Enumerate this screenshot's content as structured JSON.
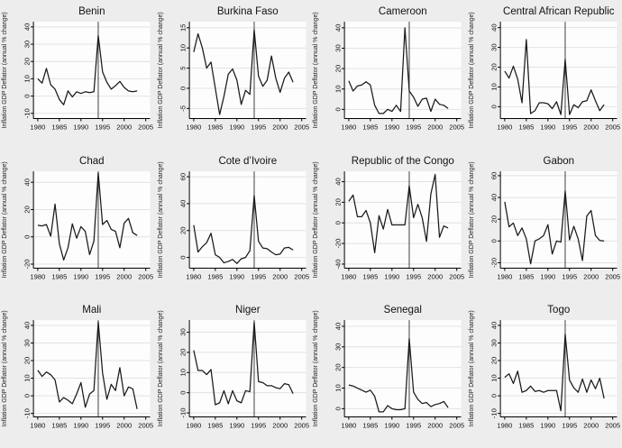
{
  "figure": {
    "y_axis_label": "Inflation GDP Deflator (annual % change)",
    "x_ticks": [
      1980,
      1985,
      1990,
      1995,
      2000,
      2005
    ],
    "xlim": [
      1979,
      2006
    ],
    "reference_line_year": 1994,
    "colors": {
      "background": "#ededed",
      "plot_bg": "#fdfdfd",
      "gridline": "#e2e2e2",
      "axis": "#000000",
      "line": "#1a1a1a",
      "refline": "#404040"
    }
  },
  "chart_data": [
    {
      "type": "line",
      "title": "Benin",
      "xlabel": "",
      "ylabel": "Inflation GDP Deflator (annual % change)",
      "x": [
        1980,
        1981,
        1982,
        1983,
        1984,
        1985,
        1986,
        1987,
        1988,
        1989,
        1990,
        1991,
        1992,
        1993,
        1994,
        1995,
        1996,
        1997,
        1998,
        1999,
        2000,
        2001,
        2002,
        2003
      ],
      "y": [
        10,
        7.5,
        16,
        6.5,
        4,
        -2,
        -5,
        3,
        -0.5,
        2.5,
        1.5,
        2.5,
        2,
        2.5,
        35,
        14,
        8,
        4,
        6,
        8.5,
        5,
        3,
        2.5,
        3
      ],
      "yticks": [
        -10,
        0,
        10,
        20,
        30,
        40
      ],
      "ylim": [
        -13,
        43
      ],
      "vline": 1994
    },
    {
      "type": "line",
      "title": "Burkina Faso",
      "xlabel": "",
      "ylabel": "Inflation GDP Deflator (annual % change)",
      "x": [
        1980,
        1981,
        1982,
        1983,
        1984,
        1985,
        1986,
        1987,
        1988,
        1989,
        1990,
        1991,
        1992,
        1993,
        1994,
        1995,
        1996,
        1997,
        1998,
        1999,
        2000,
        2001,
        2002,
        2003
      ],
      "y": [
        9,
        13.5,
        10,
        5,
        6.5,
        0,
        -6.5,
        -2,
        3.5,
        4.8,
        2,
        -4,
        -0.5,
        -1.5,
        14.5,
        3,
        0.5,
        2,
        8,
        2.5,
        -1,
        2.5,
        4,
        1.5
      ],
      "yticks": [
        -5,
        0,
        5,
        10,
        15
      ],
      "ylim": [
        -7.5,
        16.5
      ],
      "vline": 1994
    },
    {
      "type": "line",
      "title": "Cameroon",
      "xlabel": "",
      "ylabel": "Inflation GDP Deflator (annual % change)",
      "x": [
        1980,
        1981,
        1982,
        1983,
        1984,
        1985,
        1986,
        1987,
        1988,
        1989,
        1990,
        1991,
        1992,
        1993,
        1994,
        1995,
        1996,
        1997,
        1998,
        1999,
        2000,
        2001,
        2002,
        2003
      ],
      "y": [
        14,
        9,
        11.5,
        12,
        13.5,
        12,
        2,
        -2,
        -2,
        0,
        -1,
        2,
        -1,
        40,
        9,
        6,
        1.5,
        5,
        5.5,
        -1,
        5,
        2.5,
        2,
        0.5
      ],
      "yticks": [
        0,
        10,
        20,
        30,
        40
      ],
      "ylim": [
        -4.5,
        43
      ],
      "vline": 1994
    },
    {
      "type": "line",
      "title": "Central African Republic",
      "xlabel": "",
      "ylabel": "Inflation GDP Deflator (annual % change)",
      "x": [
        1980,
        1981,
        1982,
        1983,
        1984,
        1985,
        1986,
        1987,
        1988,
        1989,
        1990,
        1991,
        1992,
        1993,
        1994,
        1995,
        1996,
        1997,
        1998,
        1999,
        2000,
        2001,
        2002,
        2003
      ],
      "y": [
        18,
        14.5,
        20.5,
        14,
        2,
        34,
        -3.5,
        -2,
        2,
        2,
        1.5,
        -1,
        2.5,
        -4,
        24,
        -4,
        1,
        -0.5,
        2.5,
        3,
        8.5,
        3,
        -2,
        1
      ],
      "yticks": [
        0,
        10,
        20,
        30,
        40
      ],
      "ylim": [
        -6,
        43
      ],
      "vline": 1994
    },
    {
      "type": "line",
      "title": "Chad",
      "xlabel": "",
      "ylabel": "Inflation GDP Deflator (annual % change)",
      "x": [
        1980,
        1981,
        1982,
        1983,
        1984,
        1985,
        1986,
        1987,
        1988,
        1989,
        1990,
        1991,
        1992,
        1993,
        1994,
        1995,
        1996,
        1997,
        1998,
        1999,
        2000,
        2001,
        2002,
        2003
      ],
      "y": [
        8.5,
        8,
        9,
        0.5,
        24,
        -5,
        -17,
        -8,
        9.5,
        -1,
        7.5,
        4,
        -13,
        -3,
        47,
        9,
        12,
        5.5,
        4,
        -8,
        10,
        13.5,
        3,
        1
      ],
      "yticks": [
        -20,
        0,
        20,
        40
      ],
      "ylim": [
        -23,
        48
      ],
      "vline": 1994
    },
    {
      "type": "line",
      "title": "Cote d’Ivoire",
      "xlabel": "",
      "ylabel": "Inflation GDP Deflator (annual % change)",
      "x": [
        1980,
        1981,
        1982,
        1983,
        1984,
        1985,
        1986,
        1987,
        1988,
        1989,
        1990,
        1991,
        1992,
        1993,
        1994,
        1995,
        1996,
        1997,
        1998,
        1999,
        2000,
        2001,
        2002,
        2003
      ],
      "y": [
        24,
        4,
        8,
        11,
        18,
        2,
        0,
        -4,
        -3,
        -1.5,
        -4.5,
        -1,
        0,
        5,
        46,
        12,
        7,
        6.5,
        4,
        2,
        2.5,
        7,
        7.5,
        5.5
      ],
      "yticks": [
        0,
        20,
        40,
        60
      ],
      "ylim": [
        -8,
        64
      ],
      "vline": 1994
    },
    {
      "type": "line",
      "title": "Republic of the Congo",
      "xlabel": "",
      "ylabel": "Inflation GDP Deflator (annual % change)",
      "x": [
        1980,
        1981,
        1982,
        1983,
        1984,
        1985,
        1986,
        1987,
        1988,
        1989,
        1990,
        1991,
        1992,
        1993,
        1994,
        1995,
        1996,
        1997,
        1998,
        1999,
        2000,
        2001,
        2002,
        2003
      ],
      "y": [
        21,
        27,
        6,
        6,
        12,
        0,
        -29,
        7,
        -6,
        13,
        -2,
        -2,
        -2,
        -2,
        36,
        5,
        18,
        5,
        -18,
        28,
        47,
        -14,
        -3,
        -5
      ],
      "yticks": [
        -40,
        -20,
        0,
        20,
        40
      ],
      "ylim": [
        -44,
        50
      ],
      "vline": 1994
    },
    {
      "type": "line",
      "title": "Gabon",
      "xlabel": "",
      "ylabel": "Inflation GDP Deflator (annual % change)",
      "x": [
        1980,
        1981,
        1982,
        1983,
        1984,
        1985,
        1986,
        1987,
        1988,
        1989,
        1990,
        1991,
        1992,
        1993,
        1994,
        1995,
        1996,
        1997,
        1998,
        1999,
        2000,
        2001,
        2002,
        2003
      ],
      "y": [
        36,
        13,
        16.5,
        5,
        12,
        2,
        -21,
        0,
        2,
        5,
        15,
        -12,
        0,
        -1,
        46,
        1,
        13.5,
        2,
        -18,
        23,
        28,
        5,
        0.5,
        0
      ],
      "yticks": [
        -20,
        0,
        20,
        40,
        60
      ],
      "ylim": [
        -25,
        64
      ],
      "vline": 1994
    },
    {
      "type": "line",
      "title": "Mali",
      "xlabel": "",
      "ylabel": "Inflation GDP Deflator (annual % change)",
      "x": [
        1980,
        1981,
        1982,
        1983,
        1984,
        1985,
        1986,
        1987,
        1988,
        1989,
        1990,
        1991,
        1992,
        1993,
        1994,
        1995,
        1996,
        1997,
        1998,
        1999,
        2000,
        2001,
        2002,
        2003
      ],
      "y": [
        14.5,
        11,
        13.5,
        12,
        9,
        -3.5,
        -1,
        -2.5,
        -4.5,
        1,
        7.5,
        -6.5,
        1,
        3,
        42,
        13,
        -2,
        6.5,
        3,
        16,
        0,
        5,
        4,
        -7.5
      ],
      "yticks": [
        -10,
        0,
        10,
        20,
        30,
        40
      ],
      "ylim": [
        -12,
        43
      ],
      "vline": 1994
    },
    {
      "type": "line",
      "title": "Niger",
      "xlabel": "",
      "ylabel": "Inflation GDP Deflator (annual % change)",
      "x": [
        1980,
        1981,
        1982,
        1983,
        1984,
        1985,
        1986,
        1987,
        1988,
        1989,
        1990,
        1991,
        1992,
        1993,
        1994,
        1995,
        1996,
        1997,
        1998,
        1999,
        2000,
        2001,
        2002,
        2003
      ],
      "y": [
        21,
        11,
        11,
        9,
        11.5,
        -6,
        -5,
        1,
        -5.5,
        1,
        -4,
        -5,
        1,
        0.5,
        35,
        5.5,
        5,
        3.5,
        3.5,
        2.5,
        2,
        4.5,
        4,
        -0.5
      ],
      "yticks": [
        -10,
        0,
        10,
        20,
        30
      ],
      "ylim": [
        -12,
        36
      ],
      "vline": 1994
    },
    {
      "type": "line",
      "title": "Senegal",
      "xlabel": "",
      "ylabel": "Inflation GDP Deflator (annual % change)",
      "x": [
        1980,
        1981,
        1982,
        1983,
        1984,
        1985,
        1986,
        1987,
        1988,
        1989,
        1990,
        1991,
        1992,
        1993,
        1994,
        1995,
        1996,
        1997,
        1998,
        1999,
        2000,
        2001,
        2002,
        2003
      ],
      "y": [
        11.5,
        11,
        10,
        9,
        8,
        9,
        6,
        -1.5,
        -1.5,
        1.5,
        0,
        -0.5,
        -0.5,
        0,
        34,
        8,
        4.5,
        2.5,
        3,
        1,
        2,
        2.5,
        3.5,
        0.5
      ],
      "yticks": [
        0,
        10,
        20,
        30,
        40
      ],
      "ylim": [
        -4,
        43
      ],
      "vline": 1994
    },
    {
      "type": "line",
      "title": "Togo",
      "xlabel": "",
      "ylabel": "Inflation GDP Deflator (annual % change)",
      "x": [
        1980,
        1981,
        1982,
        1983,
        1984,
        1985,
        1986,
        1987,
        1988,
        1989,
        1990,
        1991,
        1992,
        1993,
        1994,
        1995,
        1996,
        1997,
        1998,
        1999,
        2000,
        2001,
        2002,
        2003
      ],
      "y": [
        10.5,
        12.5,
        7,
        14,
        2,
        3,
        5.5,
        2.5,
        3,
        2,
        3,
        3,
        3,
        -8.5,
        35,
        9,
        4.5,
        2,
        9.5,
        2,
        9,
        4,
        10,
        -1.5
      ],
      "yticks": [
        -10,
        0,
        10,
        20,
        30,
        40
      ],
      "ylim": [
        -12,
        43
      ],
      "vline": 1994
    }
  ]
}
